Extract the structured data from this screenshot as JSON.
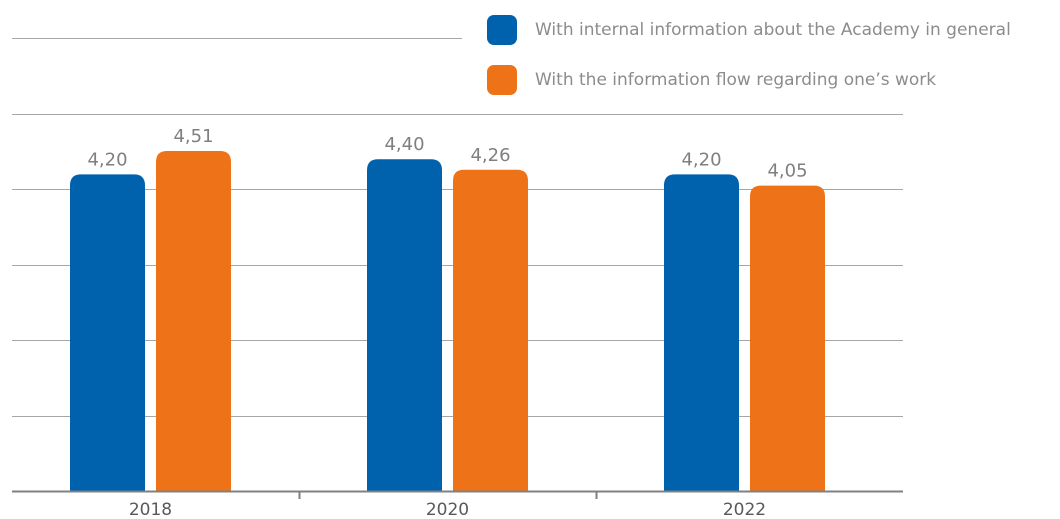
{
  "chart_data": {
    "type": "bar",
    "categories": [
      "2018",
      "2020",
      "2022"
    ],
    "series": [
      {
        "name": "With internal information about the Academy in general",
        "color": "#0061ad",
        "values": [
          4.2,
          4.4,
          4.2
        ],
        "labels": [
          "4,20",
          "4,40",
          "4,20"
        ]
      },
      {
        "name": "With the information flow regarding one’s work",
        "color": "#ee7318",
        "values": [
          4.51,
          4.26,
          4.05
        ],
        "labels": [
          "4,51",
          "4,26",
          "4,05"
        ]
      }
    ],
    "ylim": [
      0,
      5
    ],
    "grid": true,
    "legend_position": "top-right",
    "colors": {
      "gridline": "#a6a6a6",
      "axis": "#808080",
      "value_label": "#7f7f7f",
      "tick_label": "#595959"
    }
  }
}
